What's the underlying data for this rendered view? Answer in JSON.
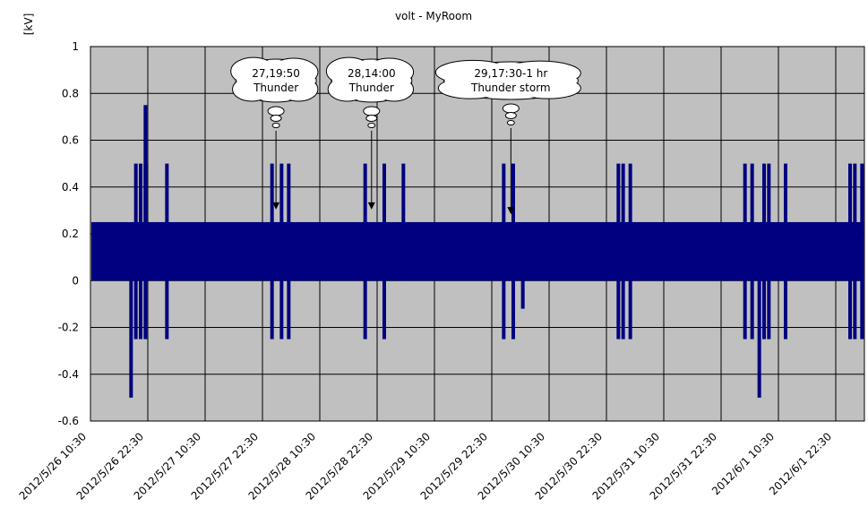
{
  "chart_data": {
    "type": "bar",
    "title": "volt - MyRoom",
    "ylabel": "[kV]",
    "xlabel": "",
    "ylim": [
      -0.6,
      1
    ],
    "y_ticks": [
      "1",
      "0.8",
      "0.6",
      "0.4",
      "0.2",
      "0",
      "-0.2",
      "-0.4",
      "-0.6"
    ],
    "x_tick_labels": [
      "2012/5/26 10:30",
      "2012/5/26 22:30",
      "2012/5/27 10:30",
      "2012/5/27 22:30",
      "2012/5/28 10:30",
      "2012/5/28 22:30",
      "2012/5/29 10:30",
      "2012/5/29 22:30",
      "2012/5/30 10:30",
      "2012/5/30 22:30",
      "2012/5/31 10:30",
      "2012/5/31 22:30",
      "2012/6/1 10:30",
      "2012/6/1 22:30"
    ],
    "x_range": [
      "2012/5/26 10:30",
      "2012/6/2 04:30"
    ],
    "grid": true,
    "plot_background": "#c0c0c0",
    "series_color": "#000080",
    "base_level": [
      {
        "from": "2012/5/26 10:30",
        "to": "2012/6/2 04:30",
        "value": 0.25
      }
    ],
    "spikes": [
      {
        "time": "2012/5/26 19:00",
        "value": -0.5
      },
      {
        "time": "2012/5/26 22:00",
        "value": 0.75
      },
      {
        "time": "2012/5/26 20:00",
        "value": 0.5
      },
      {
        "time": "2012/5/26 21:00",
        "value": 0.5
      },
      {
        "time": "2012/5/26 22:00",
        "value": 0.5
      },
      {
        "time": "2012/5/26 20:00",
        "value": -0.25
      },
      {
        "time": "2012/5/26 21:00",
        "value": -0.25
      },
      {
        "time": "2012/5/26 22:00",
        "value": -0.25
      },
      {
        "time": "2012/5/27 02:30",
        "value": 0.5
      },
      {
        "time": "2012/5/27 02:30",
        "value": -0.25
      },
      {
        "time": "2012/5/28 00:30",
        "value": 0.5
      },
      {
        "time": "2012/5/28 00:30",
        "value": -0.25
      },
      {
        "time": "2012/5/28 02:30",
        "value": 0.5
      },
      {
        "time": "2012/5/28 02:30",
        "value": -0.25
      },
      {
        "time": "2012/5/28 04:00",
        "value": 0.5
      },
      {
        "time": "2012/5/28 04:00",
        "value": -0.25
      },
      {
        "time": "2012/5/28 20:00",
        "value": 0.5
      },
      {
        "time": "2012/5/28 20:00",
        "value": -0.25
      },
      {
        "time": "2012/5/29 00:00",
        "value": 0.5
      },
      {
        "time": "2012/5/29 00:00",
        "value": -0.25
      },
      {
        "time": "2012/5/29 04:00",
        "value": 0.5
      },
      {
        "time": "2012/5/30 01:00",
        "value": 0.5
      },
      {
        "time": "2012/5/30 01:00",
        "value": -0.25
      },
      {
        "time": "2012/5/30 03:00",
        "value": 0.5
      },
      {
        "time": "2012/5/30 03:00",
        "value": -0.25
      },
      {
        "time": "2012/5/30 05:00",
        "value": -0.12
      },
      {
        "time": "2012/5/31 01:00",
        "value": 0.5
      },
      {
        "time": "2012/5/31 01:00",
        "value": -0.25
      },
      {
        "time": "2012/5/31 02:00",
        "value": 0.5
      },
      {
        "time": "2012/5/31 02:00",
        "value": -0.25
      },
      {
        "time": "2012/5/31 03:30",
        "value": 0.5
      },
      {
        "time": "2012/5/31 03:30",
        "value": -0.25
      },
      {
        "time": "2012/6/1 03:30",
        "value": 0.5
      },
      {
        "time": "2012/6/1 03:30",
        "value": -0.25
      },
      {
        "time": "2012/6/1 05:00",
        "value": 0.5
      },
      {
        "time": "2012/6/1 05:00",
        "value": -0.25
      },
      {
        "time": "2012/6/1 06:30",
        "value": -0.5
      },
      {
        "time": "2012/6/1 07:30",
        "value": 0.5
      },
      {
        "time": "2012/6/1 07:30",
        "value": -0.25
      },
      {
        "time": "2012/6/1 08:30",
        "value": 0.5
      },
      {
        "time": "2012/6/1 08:30",
        "value": -0.25
      },
      {
        "time": "2012/6/1 12:00",
        "value": 0.5
      },
      {
        "time": "2012/6/1 12:00",
        "value": -0.25
      },
      {
        "time": "2012/6/2 01:30",
        "value": 0.5
      },
      {
        "time": "2012/6/2 01:30",
        "value": -0.25
      },
      {
        "time": "2012/6/2 02:30",
        "value": 0.5
      },
      {
        "time": "2012/6/2 02:30",
        "value": -0.25
      },
      {
        "time": "2012/6/2 04:00",
        "value": 0.5
      },
      {
        "time": "2012/6/2 04:00",
        "value": -0.25
      }
    ],
    "annotations": [
      {
        "line1": "27,19:50",
        "line2": "Thunder",
        "time": "2012/5/28 01:20",
        "target_value": 0.3
      },
      {
        "line1": "28,14:00",
        "line2": "Thunder",
        "time": "2012/5/28 21:20",
        "target_value": 0.3
      },
      {
        "line1": "29,17:30-1 hr",
        "line2": "Thunder storm",
        "time": "2012/5/30 02:30",
        "target_value": 0.28
      }
    ]
  }
}
